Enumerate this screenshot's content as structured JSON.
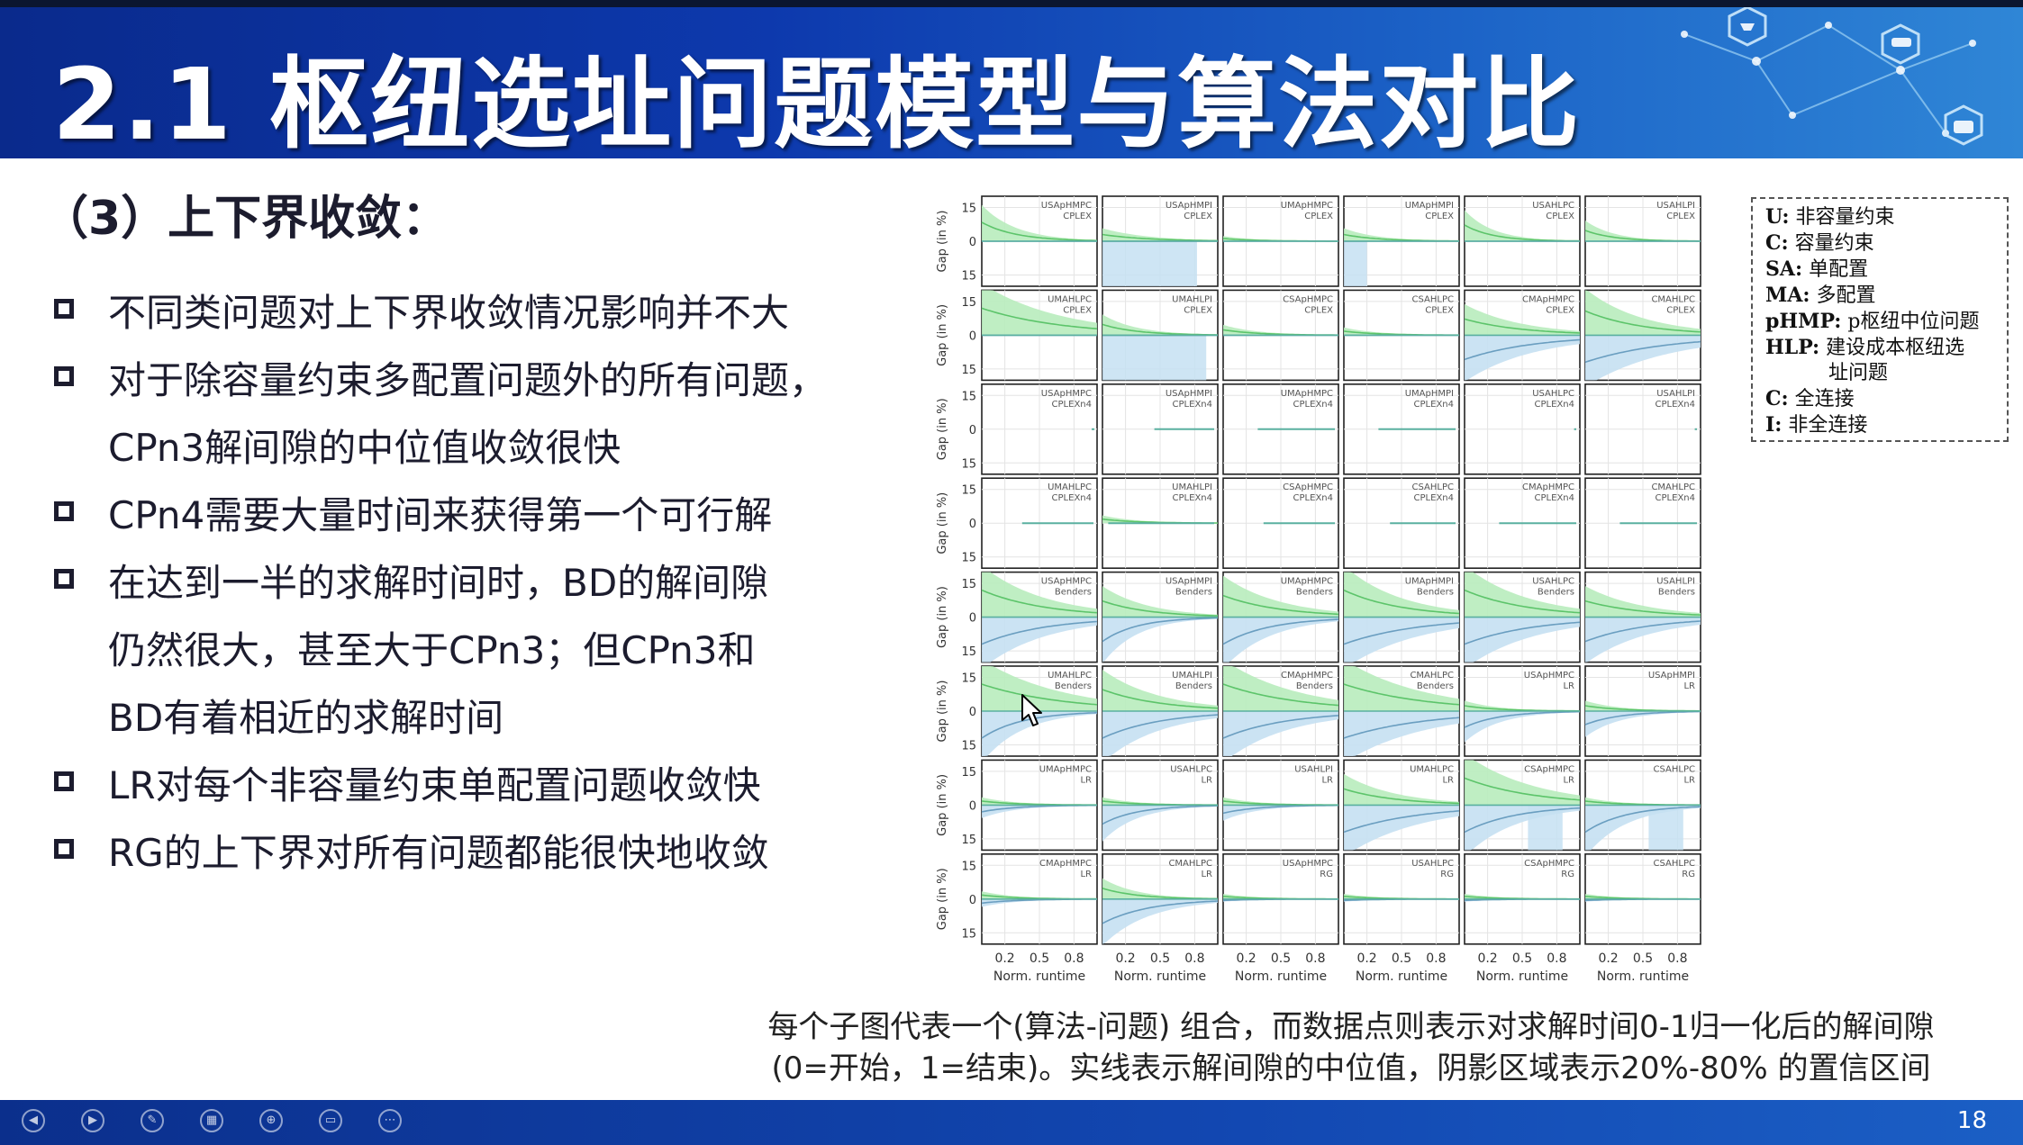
{
  "slide": {
    "title": "2.1 枢纽选址问题模型与算法对比",
    "section_heading": "（3）上下界收敛：",
    "page_number": "18",
    "accent_color": "#0d39ad"
  },
  "bullets": [
    {
      "lines": [
        "不同类问题对上下界收敛情况影响并不大"
      ]
    },
    {
      "lines": [
        "对于除容量约束多配置问题外的所有问题，",
        "CPn3解间隙的中位值收敛很快"
      ]
    },
    {
      "lines": [
        "CPn4需要大量时间来获得第一个可行解"
      ]
    },
    {
      "lines": [
        "在达到一半的求解时间时，BD的解间隙",
        "仍然很大，甚至大于CPn3；但CPn3和",
        "BD有着相近的求解时间"
      ]
    },
    {
      "lines": [
        "LR对每个非容量约束单配置问题收敛快"
      ]
    },
    {
      "lines": [
        "RG的上下界对所有问题都能很快地收敛"
      ]
    }
  ],
  "legend": [
    {
      "key": "U:",
      "text": "非容量约束"
    },
    {
      "key": "C:",
      "text": "容量约束"
    },
    {
      "key": "SA:",
      "text": "单配置"
    },
    {
      "key": "MA:",
      "text": "多配置"
    },
    {
      "key": "pHMP:",
      "text": "p枢纽中位问题"
    },
    {
      "key": "HLP:",
      "text": "建设成本枢纽选"
    },
    {
      "key": "",
      "text": "址问题"
    },
    {
      "key": "C:",
      "text": "全连接"
    },
    {
      "key": "I:",
      "text": "非全连接"
    }
  ],
  "caption": {
    "line1": "每个子图代表一个(算法-问题) 组合，而数据点则表示对求解时间0-1归一化后的解间隙",
    "line2": "(0=开始，1=结束)。实线表示解间隙的中位值，阴影区域表示20%-80% 的置信区间"
  },
  "chart_data": {
    "type": "line",
    "grid_rows": 8,
    "grid_cols": 6,
    "ylabel": "Gap (in %)",
    "xlabel": "Norm. runtime",
    "x_ticks": [
      "0.2",
      "0.5",
      "0.8"
    ],
    "y_ticks": [
      "15",
      "0",
      "15"
    ],
    "xlim": [
      0,
      1
    ],
    "ylim": [
      -20,
      20
    ],
    "colors": {
      "upper": "#5cc46a",
      "upper_fill": "#b8ecbd",
      "lower": "#6a9ec0",
      "lower_fill": "#c5e0f2",
      "median": "#5ab0a0"
    },
    "panels": [
      {
        "l1": "USApHMPC",
        "l2": "CPLEX",
        "up": [
          14,
          0.3
        ],
        "lo": [
          0,
          0.3
        ]
      },
      {
        "l1": "USApHMPI",
        "l2": "CPLEX",
        "up": [
          5,
          0.4
        ],
        "lo": [
          0,
          0.3
        ],
        "lofill": {
          "x": [
            0.0,
            0.82
          ],
          "d": 20
        }
      },
      {
        "l1": "UMApHMPC",
        "l2": "CPLEX",
        "up": [
          2,
          0.3
        ],
        "lo": [
          0,
          0.3
        ]
      },
      {
        "l1": "UMApHMPI",
        "l2": "CPLEX",
        "up": [
          5,
          0.3
        ],
        "lo": [
          0,
          0.3
        ],
        "lofill": {
          "x": [
            0.0,
            0.2
          ],
          "d": 20
        }
      },
      {
        "l1": "USAHLPC",
        "l2": "CPLEX",
        "up": [
          12,
          0.25
        ],
        "lo": [
          0,
          0.3
        ]
      },
      {
        "l1": "USAHLPI",
        "l2": "CPLEX",
        "up": [
          8,
          0.25
        ],
        "lo": [
          0,
          0.3
        ]
      },
      {
        "l1": "UMAHLPC",
        "l2": "CPLEX",
        "up": [
          20,
          0.7
        ],
        "lo": [
          0,
          0.3
        ]
      },
      {
        "l1": "UMAHLPI",
        "l2": "CPLEX",
        "up": [
          8,
          0.3
        ],
        "lo": [
          0,
          0.3
        ],
        "lofill": {
          "x": [
            0.0,
            0.9
          ],
          "d": 20
        }
      },
      {
        "l1": "CSApHMPC",
        "l2": "CPLEX",
        "up": [
          4,
          0.3
        ],
        "lo": [
          0,
          0.3
        ]
      },
      {
        "l1": "CSAHLPC",
        "l2": "CPLEX",
        "up": [
          3,
          0.3
        ],
        "lo": [
          0,
          0.3
        ]
      },
      {
        "l1": "CMApHMPC",
        "l2": "CPLEX",
        "up": [
          12,
          0.5
        ],
        "lo": [
          -18,
          0.6
        ]
      },
      {
        "l1": "CMAHLPC",
        "l2": "CPLEX",
        "up": [
          18,
          0.5
        ],
        "lo": [
          -20,
          0.7
        ]
      },
      {
        "l1": "USApHMPC",
        "l2": "CPLEXn4",
        "start": 1.0
      },
      {
        "l1": "USApHMPI",
        "l2": "CPLEXn4",
        "start": 0.45
      },
      {
        "l1": "UMApHMPC",
        "l2": "CPLEXn4",
        "start": 0.3
      },
      {
        "l1": "UMApHMPI",
        "l2": "CPLEXn4",
        "start": 0.3
      },
      {
        "l1": "USAHLPC",
        "l2": "CPLEXn4",
        "start": 0.95
      },
      {
        "l1": "USAHLPI",
        "l2": "CPLEXn4",
        "start": 0.95
      },
      {
        "l1": "UMAHLPC",
        "l2": "CPLEXn4",
        "start": 0.35
      },
      {
        "l1": "UMAHLPI",
        "l2": "CPLEXn4",
        "start": 0.05,
        "up": [
          3,
          0.3
        ]
      },
      {
        "l1": "CSApHMPC",
        "l2": "CPLEXn4",
        "start": 0.35
      },
      {
        "l1": "CSAHLPC",
        "l2": "CPLEXn4",
        "start": 0.4
      },
      {
        "l1": "CMApHMPC",
        "l2": "CPLEXn4",
        "start": 0.3
      },
      {
        "l1": "CMAHLPC",
        "l2": "CPLEXn4",
        "start": 0.3
      },
      {
        "l1": "USApHMPC",
        "l2": "Benders",
        "up": [
          20,
          0.55
        ],
        "lo": [
          -20,
          0.55
        ]
      },
      {
        "l1": "USApHMPI",
        "l2": "Benders",
        "up": [
          12,
          0.4
        ],
        "lo": [
          -18,
          0.3
        ]
      },
      {
        "l1": "UMApHMPC",
        "l2": "Benders",
        "up": [
          16,
          0.5
        ],
        "lo": [
          -20,
          0.4
        ]
      },
      {
        "l1": "UMApHMPI",
        "l2": "Benders",
        "up": [
          20,
          0.5
        ],
        "lo": [
          -20,
          0.65
        ]
      },
      {
        "l1": "USAHLPC",
        "l2": "Benders",
        "up": [
          20,
          0.55
        ],
        "lo": [
          -20,
          0.6
        ]
      },
      {
        "l1": "USAHLPI",
        "l2": "Benders",
        "up": [
          12,
          0.5
        ],
        "lo": [
          -18,
          0.55
        ]
      },
      {
        "l1": "UMAHLPC",
        "l2": "Benders",
        "up": [
          20,
          0.7
        ],
        "lo": [
          -20,
          0.35
        ]
      },
      {
        "l1": "UMAHLPI",
        "l2": "Benders",
        "up": [
          16,
          0.5
        ],
        "lo": [
          -20,
          0.5
        ]
      },
      {
        "l1": "CMApHMPC",
        "l2": "Benders",
        "up": [
          20,
          0.65
        ],
        "lo": [
          -20,
          0.55
        ]
      },
      {
        "l1": "CMAHLPC",
        "l2": "Benders",
        "up": [
          20,
          0.7
        ],
        "lo": [
          -20,
          0.7
        ]
      },
      {
        "l1": "USApHMPC",
        "l2": "LR",
        "up": [
          4,
          0.3
        ],
        "lo": [
          -12,
          0.3
        ]
      },
      {
        "l1": "USApHMPI",
        "l2": "LR",
        "up": [
          4,
          0.3
        ],
        "lo": [
          -10,
          0.3
        ]
      },
      {
        "l1": "UMApHMPC",
        "l2": "LR",
        "up": [
          3,
          0.3
        ],
        "lo": [
          -5,
          0.3
        ]
      },
      {
        "l1": "USAHLPC",
        "l2": "LR",
        "up": [
          3,
          0.3
        ],
        "lo": [
          -14,
          0.3
        ]
      },
      {
        "l1": "USAHLPI",
        "l2": "LR",
        "up": [
          3,
          0.3
        ],
        "lo": [
          -6,
          0.3
        ]
      },
      {
        "l1": "UMAHLPC",
        "l2": "LR",
        "up": [
          12,
          0.45
        ],
        "lo": [
          -20,
          0.65
        ]
      },
      {
        "l1": "CSApHMPC",
        "l2": "LR",
        "up": [
          20,
          0.6
        ],
        "lo": [
          -20,
          0.45
        ],
        "lofill": {
          "x": [
            0.55,
            0.85
          ],
          "d": 20
        }
      },
      {
        "l1": "CSAHLPC",
        "l2": "LR",
        "up": [
          3,
          0.3
        ],
        "lo": [
          -20,
          0.35
        ],
        "lofill": {
          "x": [
            0.55,
            0.85
          ],
          "d": 20
        }
      },
      {
        "l1": "CMApHMPC",
        "l2": "LR",
        "up": [
          3,
          0.3
        ],
        "lo": [
          -3,
          0.3
        ]
      },
      {
        "l1": "CMAHLPC",
        "l2": "LR",
        "up": [
          8,
          0.3
        ],
        "lo": [
          -18,
          0.4
        ]
      },
      {
        "l1": "USApHMPC",
        "l2": "RG",
        "up": [
          2,
          0.3
        ],
        "lo": [
          -1,
          0.3
        ]
      },
      {
        "l1": "USAHLPC",
        "l2": "RG",
        "up": [
          2,
          0.3
        ],
        "lo": [
          -1,
          0.3
        ]
      },
      {
        "l1": "CSApHMPC",
        "l2": "RG",
        "up": [
          2,
          0.3
        ],
        "lo": [
          -1,
          0.3
        ]
      },
      {
        "l1": "CSAHLPC",
        "l2": "RG",
        "up": [
          2,
          0.3
        ],
        "lo": [
          -1,
          0.3
        ]
      }
    ]
  }
}
